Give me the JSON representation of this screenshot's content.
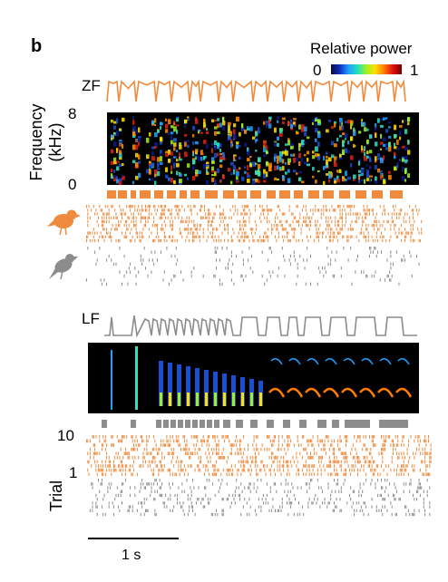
{
  "panel": {
    "letter": "b"
  },
  "colorbar": {
    "title": "Relative power",
    "min_label": "0",
    "max_label": "1"
  },
  "zf": {
    "label": "ZF",
    "freq_axis": {
      "label_line1": "Frequency",
      "label_line2": "(kHz)",
      "top_tick": "8",
      "bottom_tick": "0"
    },
    "color": "#f08a3c"
  },
  "lf": {
    "label": "LF",
    "trial_axis": {
      "label": "Trial",
      "top_tick": "10",
      "bottom_tick": "1"
    },
    "color": "#8c8c8c"
  },
  "scalebar": {
    "label": "1 s"
  },
  "icons": {
    "orange_bird": "zebra-finch-icon",
    "gray_bird": "bird-icon"
  }
}
